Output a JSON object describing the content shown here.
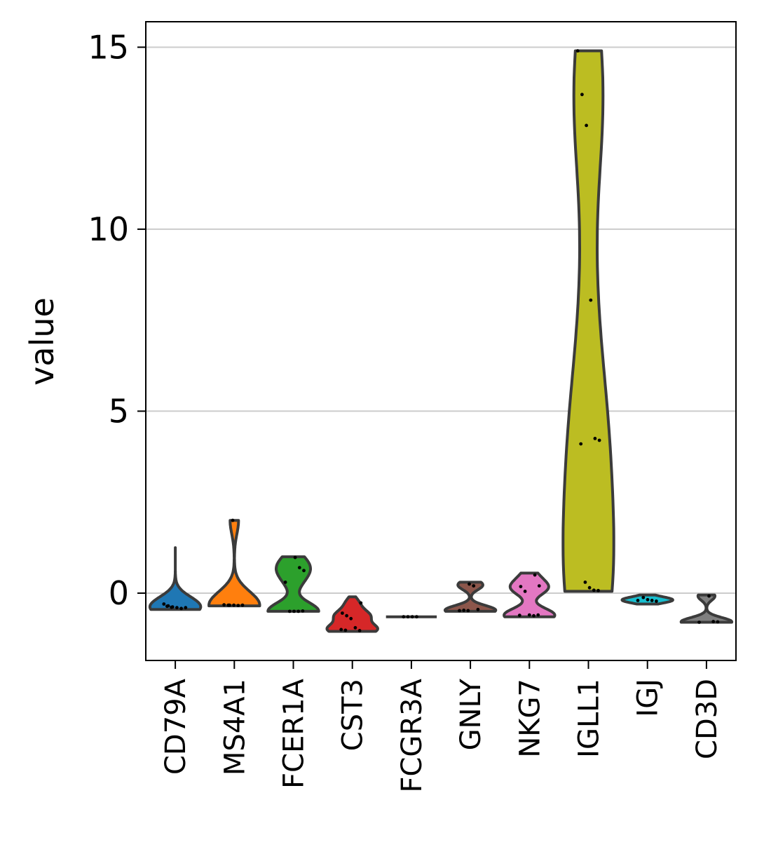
{
  "chart_data": {
    "type": "violin",
    "title": "",
    "xlabel": "",
    "ylabel": "value",
    "ylim": [
      -1.85,
      15.7
    ],
    "yticks": [
      0,
      5,
      10,
      15
    ],
    "grid": "horizontal",
    "categories": [
      "CD79A",
      "MS4A1",
      "FCER1A",
      "CST3",
      "FCGR3A",
      "GNLY",
      "NKG7",
      "IGLL1",
      "IGJ",
      "CD3D"
    ],
    "series": [
      {
        "gene": "CD79A",
        "color": "#1f77b4",
        "min": -0.45,
        "max": 1.25,
        "points": [
          -0.3,
          -0.35,
          -0.38,
          -0.4,
          -0.42,
          -0.4,
          -0.36,
          -0.39
        ]
      },
      {
        "gene": "MS4A1",
        "color": "#ff7f0e",
        "min": -0.35,
        "max": 2.0,
        "points": [
          -0.33,
          -0.33,
          -0.34,
          -0.33,
          -0.32,
          -0.33,
          2.0
        ]
      },
      {
        "gene": "FCER1A",
        "color": "#2ca02c",
        "min": -0.5,
        "max": 1.0,
        "points": [
          0.98,
          0.7,
          0.62,
          0.3,
          -0.5,
          -0.5,
          -0.5,
          -0.49
        ]
      },
      {
        "gene": "CST3",
        "color": "#d62728",
        "min": -1.05,
        "max": -0.1,
        "points": [
          -0.27,
          -0.55,
          -0.62,
          -0.7,
          -0.95,
          -1.03,
          -1.0,
          -1.02
        ]
      },
      {
        "gene": "FCGR3A",
        "color": "#8c564b",
        "min": -0.65,
        "max": -0.65,
        "points": [
          -0.65,
          -0.65,
          -0.65,
          -0.65
        ]
      },
      {
        "gene": "GNLY",
        "color": "#8c564b",
        "min": -0.5,
        "max": 0.3,
        "points": [
          0.25,
          0.2,
          -0.45,
          -0.48,
          -0.47,
          -0.48
        ]
      },
      {
        "gene": "NKG7",
        "color": "#e377c2",
        "min": -0.65,
        "max": 0.55,
        "points": [
          0.5,
          0.2,
          0.18,
          0.05,
          -0.6,
          -0.62,
          -0.6,
          -0.61
        ]
      },
      {
        "gene": "IGLL1",
        "color": "#bcbd22",
        "min": 0.05,
        "max": 14.9,
        "points": [
          14.9,
          13.7,
          12.85,
          8.05,
          4.25,
          4.2,
          4.1,
          0.3,
          0.15,
          0.08,
          0.07
        ]
      },
      {
        "gene": "IGJ",
        "color": "#17becf",
        "min": -0.3,
        "max": -0.05,
        "points": [
          -0.12,
          -0.18,
          -0.2,
          -0.22,
          -0.2
        ]
      },
      {
        "gene": "CD3D",
        "color": "#7f7f7f",
        "min": -0.8,
        "max": -0.05,
        "points": [
          -0.08,
          -0.78,
          -0.79,
          -0.8
        ]
      }
    ]
  }
}
